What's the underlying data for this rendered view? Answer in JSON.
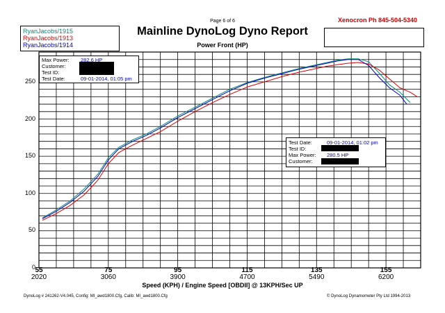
{
  "header": {
    "page_label": "Page 6 of 6",
    "contact": "Xenocron  Ph 845-504-5340",
    "title": "Mainline DynoLog Dyno Report",
    "subtitle": "Power Front (HP)"
  },
  "legend": [
    {
      "name": "RyanJacobs/1915",
      "color": "#0a8a7a"
    },
    {
      "name": "RyanJacobs/1913",
      "color": "#dd0000"
    },
    {
      "name": "RyanJacobs/1914",
      "color": "#0000cc"
    }
  ],
  "info_box_1": {
    "rows": [
      {
        "label": "Max Power:",
        "value": "282.6 HP"
      },
      {
        "label": "Customer:",
        "value": ""
      },
      {
        "label": "Test ID:",
        "value": ""
      },
      {
        "label": "Test Date:",
        "value": "09-01-2014, 01:05 pm"
      }
    ]
  },
  "info_box_2": {
    "rows": [
      {
        "label": "Test Date:",
        "value": "09-01-2014, 01:02 pm"
      },
      {
        "label": "Test ID:",
        "value": ""
      },
      {
        "label": "Max Power:",
        "value": "280.5 HP"
      },
      {
        "label": "Customer:",
        "value": ""
      }
    ]
  },
  "footer": {
    "left": "DynoLog # 241262-V4.045,  Config: MI_awd1800.Cfg,  Calib: MI_awd1800.Cfg",
    "right": "© DynoLog Dynamometer Pty Ltd 1994-2013"
  },
  "chart_data": {
    "type": "line",
    "title": "Mainline DynoLog Dyno Report",
    "subtitle": "Power Front (HP)",
    "xlabel": "Speed (KPH) / Engine Speed [OBDII] @ 13KPH/Sec UP",
    "ylabel": "",
    "xlim": [
      55,
      165
    ],
    "ylim": [
      0,
      290
    ],
    "grid": true,
    "y_ticks": [
      0,
      50,
      100,
      150,
      200,
      250
    ],
    "x_ticks_speed": [
      "55",
      "75",
      "95",
      "115",
      "135",
      "155"
    ],
    "x_ticks_rpm": [
      "2020",
      "3060",
      "3900",
      "4700",
      "5490",
      "6200"
    ],
    "series": [
      {
        "name": "RyanJacobs/1915",
        "color": "#0a8a7a",
        "x": [
          56,
          60,
          64,
          68,
          72,
          75,
          78,
          82,
          86,
          90,
          95,
          100,
          105,
          110,
          115,
          120,
          125,
          130,
          135,
          138,
          141,
          144,
          147,
          150,
          153,
          156,
          159,
          162
        ],
        "y": [
          67,
          78,
          90,
          106,
          126,
          148,
          162,
          172,
          180,
          190,
          204,
          216,
          228,
          240,
          249,
          256,
          262,
          268,
          273,
          276,
          279,
          281,
          281,
          277,
          262,
          246,
          236,
          222
        ]
      },
      {
        "name": "RyanJacobs/1913",
        "color": "#dd0000",
        "x": [
          56,
          60,
          64,
          68,
          72,
          75,
          78,
          82,
          86,
          90,
          95,
          100,
          105,
          110,
          115,
          120,
          125,
          130,
          135,
          138,
          141,
          144,
          147,
          150,
          153,
          156,
          159,
          162,
          164
        ],
        "y": [
          64,
          73,
          84,
          98,
          118,
          140,
          155,
          165,
          174,
          183,
          197,
          210,
          222,
          233,
          243,
          250,
          257,
          263,
          268,
          271,
          273,
          275,
          276,
          274,
          266,
          254,
          242,
          236,
          230
        ]
      },
      {
        "name": "RyanJacobs/1914",
        "color": "#0000cc",
        "x": [
          56,
          60,
          64,
          68,
          72,
          75,
          78,
          82,
          86,
          90,
          95,
          100,
          105,
          110,
          115,
          120,
          125,
          130,
          135,
          138,
          141,
          144,
          147,
          150,
          153,
          156,
          159,
          161
        ],
        "y": [
          66,
          76,
          88,
          103,
          123,
          145,
          160,
          170,
          178,
          188,
          202,
          214,
          226,
          238,
          248,
          255,
          261,
          267,
          272,
          275,
          278,
          280,
          280,
          272,
          256,
          242,
          232,
          220
        ]
      }
    ]
  }
}
